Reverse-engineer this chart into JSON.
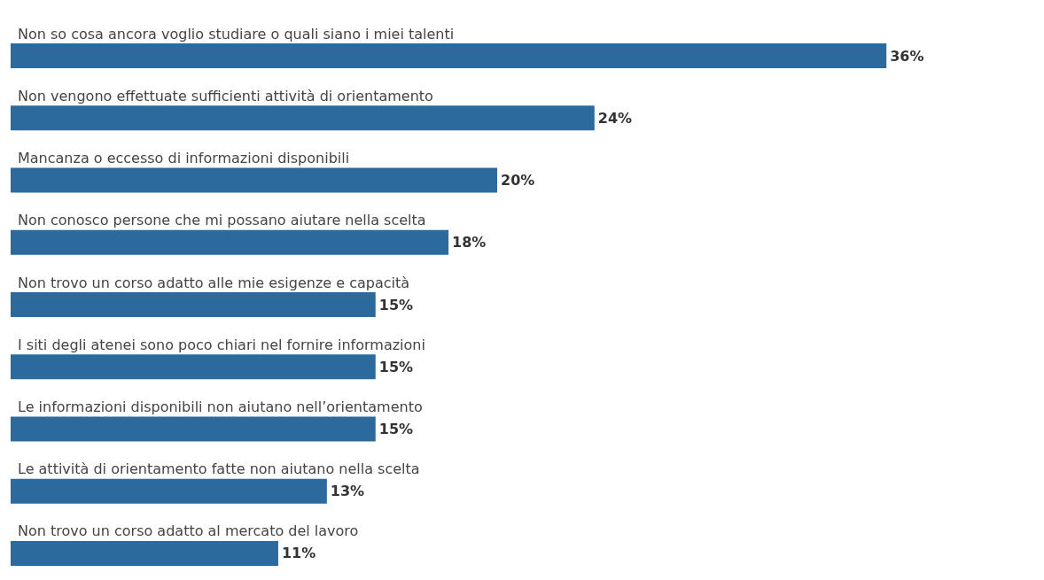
{
  "chart_data": {
    "type": "bar",
    "orientation": "horizontal",
    "categories": [
      "Non so cosa ancora voglio studiare o quali siano i miei talenti",
      "Non vengono effettuate sufficienti attività di orientamento",
      "Mancanza o eccesso di informazioni disponibili",
      "Non conosco persone che mi possano aiutare nella scelta",
      "Non trovo un corso adatto alle mie esigenze e capacità",
      "I siti degli atenei sono poco chiari nel fornire informazioni",
      "Le informazioni disponibili non aiutano nell’orientamento",
      "Le attività di orientamento fatte non aiutano nella scelta",
      "Non trovo un corso adatto al mercato del lavoro"
    ],
    "values": [
      36,
      24,
      20,
      18,
      15,
      15,
      15,
      13,
      11
    ],
    "value_labels": [
      "36%",
      "24%",
      "20%",
      "18%",
      "15%",
      "15%",
      "15%",
      "13%",
      "11%"
    ],
    "color": "#2c6a9e"
  }
}
